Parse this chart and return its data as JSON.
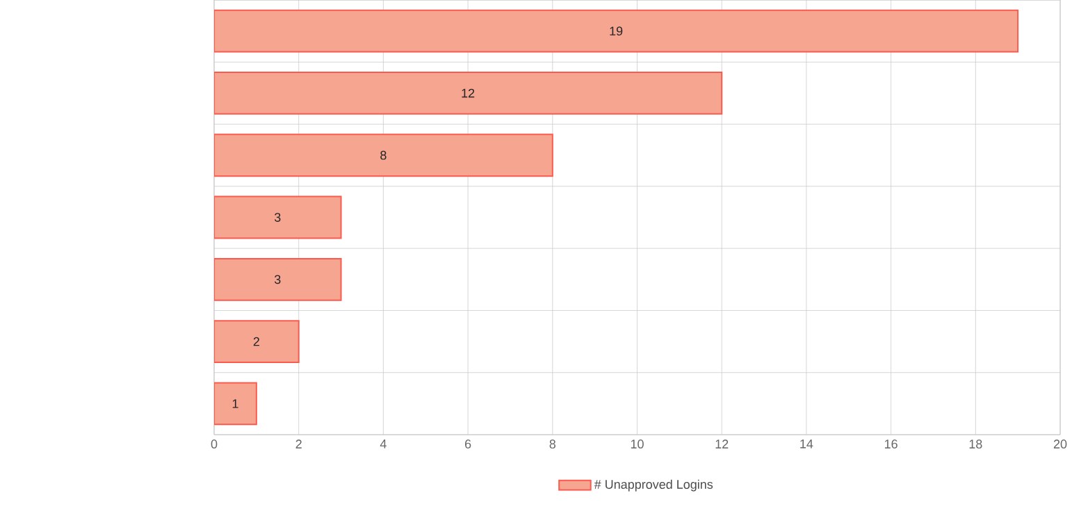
{
  "chart_data": {
    "type": "bar",
    "orientation": "horizontal",
    "categories": [
      null,
      null,
      null,
      null,
      null,
      null,
      null
    ],
    "series": [
      {
        "name": "# Unapproved Logins",
        "color": "#f6a590",
        "values": [
          19,
          12,
          8,
          3,
          3,
          2,
          1
        ]
      }
    ],
    "xlim": [
      0,
      20
    ],
    "xticks": [
      0,
      2,
      4,
      6,
      8,
      10,
      12,
      14,
      16,
      18,
      20
    ],
    "grid": true,
    "legend": "bottom",
    "data_labels": true,
    "tick_labels": "x"
  }
}
